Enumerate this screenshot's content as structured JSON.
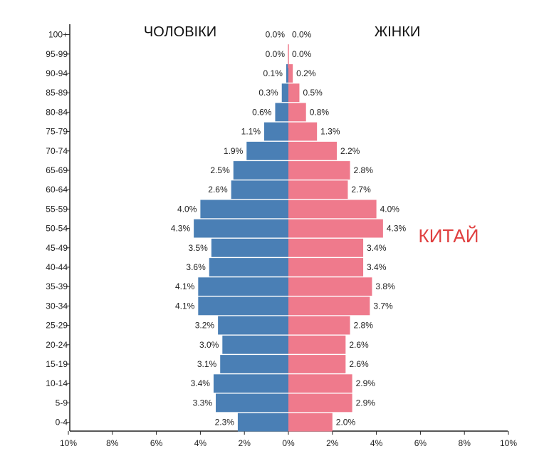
{
  "chart_data": {
    "type": "bar",
    "orientation": "horizontal-butterfly",
    "title": "КИТАЙ",
    "left_label": "ЧОЛОВІКИ",
    "right_label": "ЖІНКИ",
    "colors": {
      "male": "#4a7fb5",
      "female": "#ef7a8c"
    },
    "x_ticks": [
      "10%",
      "8%",
      "6%",
      "4%",
      "2%",
      "0%",
      "2%",
      "4%",
      "6%",
      "8%",
      "10%"
    ],
    "xlim": [
      0,
      10
    ],
    "categories": [
      "100+",
      "95-99",
      "90-94",
      "85-89",
      "80-84",
      "75-79",
      "70-74",
      "65-69",
      "60-64",
      "55-59",
      "50-54",
      "45-49",
      "40-44",
      "35-39",
      "30-34",
      "25-29",
      "20-24",
      "15-19",
      "10-14",
      "5-9",
      "0-4"
    ],
    "series": [
      {
        "name": "ЧОЛОВІКИ",
        "values": [
          0.0,
          0.0,
          0.1,
          0.3,
          0.6,
          1.1,
          1.9,
          2.5,
          2.6,
          4.0,
          4.3,
          3.5,
          3.6,
          4.1,
          4.1,
          3.2,
          3.0,
          3.1,
          3.4,
          3.3,
          2.3
        ]
      },
      {
        "name": "ЖІНКИ",
        "values": [
          0.0,
          0.0,
          0.2,
          0.5,
          0.8,
          1.3,
          2.2,
          2.8,
          2.7,
          4.0,
          4.3,
          3.4,
          3.4,
          3.8,
          3.7,
          2.8,
          2.6,
          2.6,
          2.9,
          2.9,
          2.0
        ]
      }
    ]
  }
}
